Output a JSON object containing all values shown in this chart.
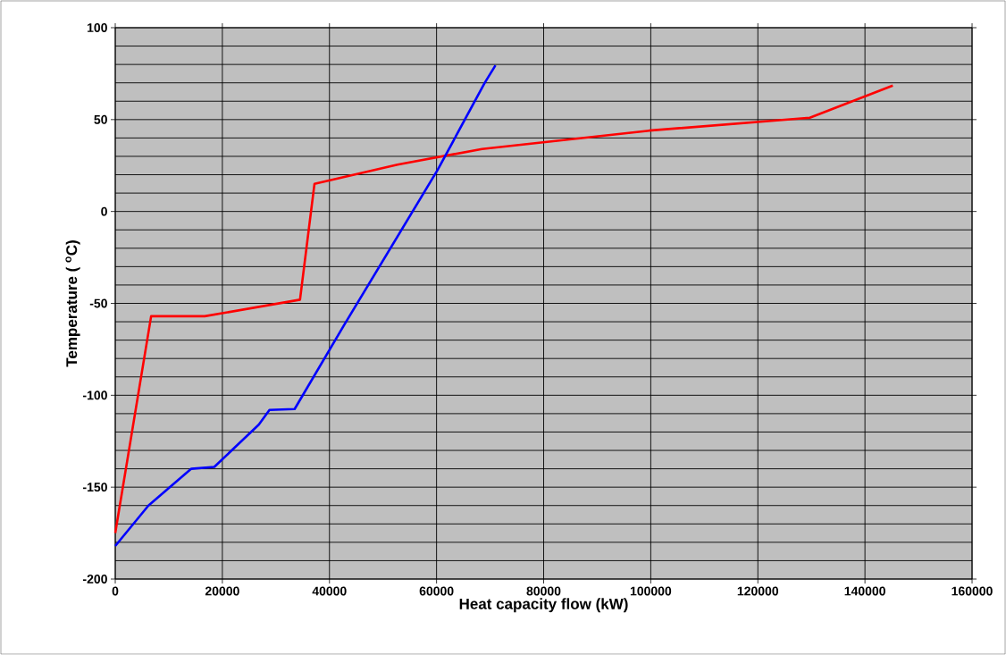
{
  "chart_data": {
    "type": "line",
    "xlabel": "Heat capacity flow (kW)",
    "ylabel": "Temperature  ( $^{o}$C)",
    "xlim": [
      0,
      160000
    ],
    "ylim": [
      -200,
      100
    ],
    "xticks": [
      0,
      20000,
      40000,
      60000,
      80000,
      100000,
      120000,
      140000,
      160000
    ],
    "yticks": [
      -200,
      -150,
      -100,
      -50,
      0,
      50,
      100
    ],
    "grid": true,
    "marker": "none",
    "line_style": "solid",
    "series": [
      {
        "color": "#ff0000",
        "x": [
          0,
          6700,
          16700,
          34500,
          37200,
          52700,
          68500,
          99700,
          129700,
          145200
        ],
        "values": [
          -175,
          -57,
          -57,
          -48,
          15,
          25.5,
          34,
          44,
          51,
          68.5
        ]
      },
      {
        "color": "#0000ff",
        "x": [
          0,
          6200,
          7800,
          14200,
          18500,
          26800,
          28800,
          33500,
          42700,
          60200,
          69000,
          71000
        ],
        "values": [
          -182,
          -160,
          -156,
          -140,
          -139,
          -116,
          -108,
          -107.5,
          -62,
          22.6,
          70,
          79.5
        ]
      }
    ]
  }
}
